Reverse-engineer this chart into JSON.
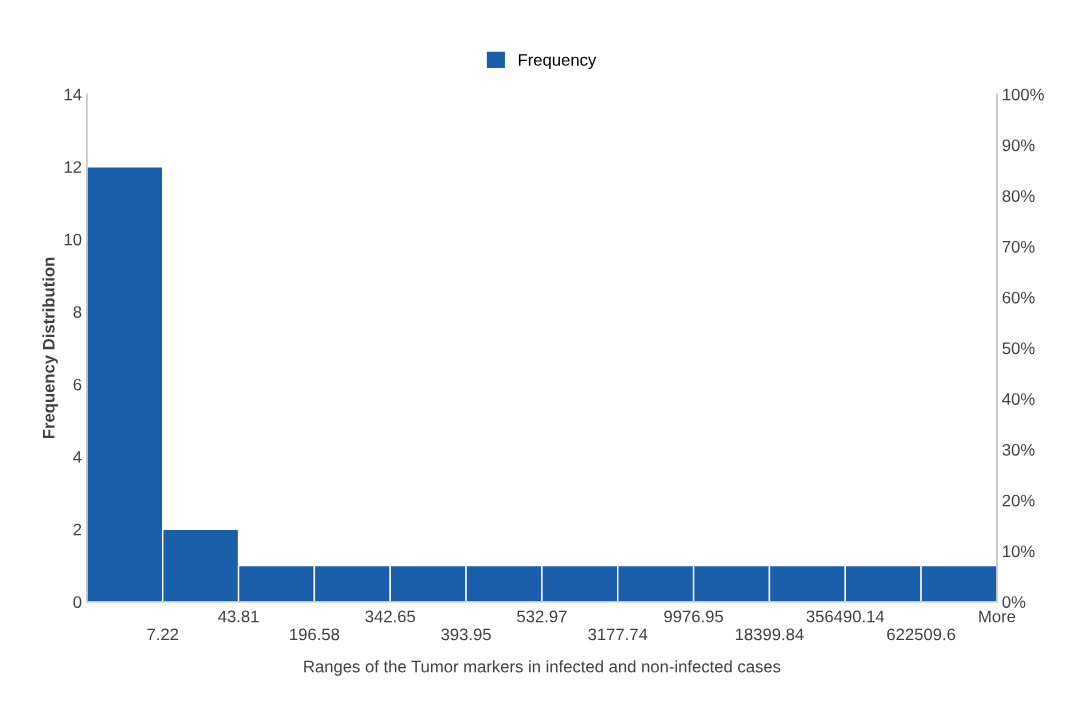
{
  "chart_data": {
    "type": "bar",
    "xlabel": "Ranges of the Tumor markers in infected and non-infected cases",
    "ylabel": "Frequency Distribution",
    "categories": [
      "7.22",
      "43.81",
      "196.58",
      "342.65",
      "393.95",
      "532.97",
      "3177.74",
      "9976.95",
      "18399.84",
      "356490.14",
      "622509.6",
      "More"
    ],
    "series": [
      {
        "name": "Frequency",
        "color": "#1b5faa",
        "values": [
          12,
          2,
          1,
          1,
          1,
          1,
          1,
          1,
          1,
          1,
          1,
          1
        ]
      }
    ],
    "ylim": [
      0,
      14
    ],
    "yticks": [
      0,
      2,
      4,
      6,
      8,
      10,
      12,
      14
    ],
    "y2lim": [
      0,
      100
    ],
    "y2ticks": [
      {
        "value": 0,
        "label": "0%"
      },
      {
        "value": 10,
        "label": "10%"
      },
      {
        "value": 20,
        "label": "20%"
      },
      {
        "value": 30,
        "label": "30%"
      },
      {
        "value": 40,
        "label": "40%"
      },
      {
        "value": 50,
        "label": "50%"
      },
      {
        "value": 60,
        "label": "60%"
      },
      {
        "value": 70,
        "label": "70%"
      },
      {
        "value": 80,
        "label": "80%"
      },
      {
        "value": 90,
        "label": "90%"
      },
      {
        "value": 100,
        "label": "100%"
      }
    ],
    "grid": false,
    "legend": "top"
  }
}
